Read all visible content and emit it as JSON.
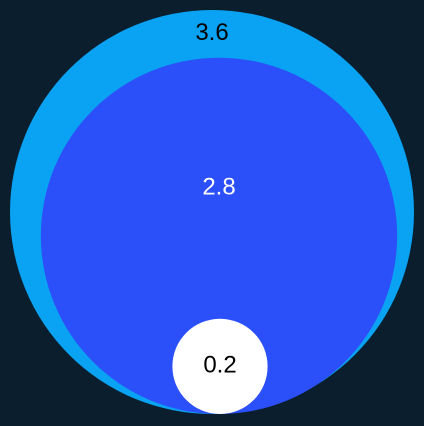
{
  "chart_data": {
    "type": "nested-bubble",
    "values": [
      3.6,
      2.8,
      0.2
    ],
    "colors": [
      "#0aa2f2",
      "#2b4ff8",
      "#ffffff"
    ],
    "label_colors": [
      "#000000",
      "#ffffff",
      "#000000"
    ]
  }
}
